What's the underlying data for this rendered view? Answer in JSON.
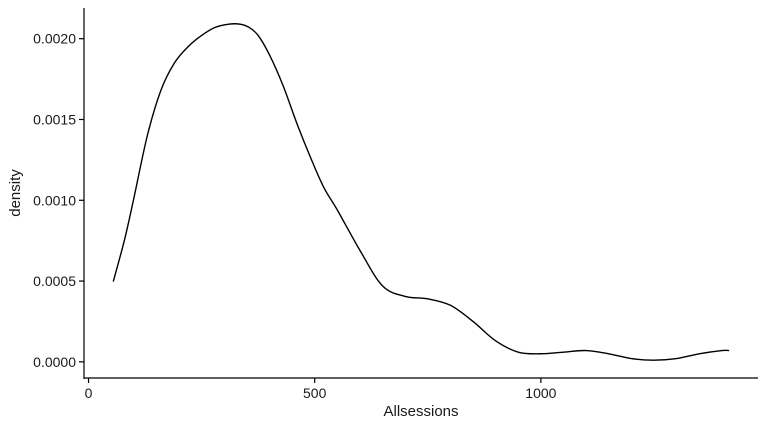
{
  "chart_data": {
    "type": "line",
    "title": "",
    "xlabel": "Allsessions",
    "ylabel": "density",
    "xlim": [
      -10,
      1480
    ],
    "ylim": [
      -0.0001,
      0.00219
    ],
    "x_ticks": [
      0,
      500,
      1000
    ],
    "x_tick_labels": [
      "0",
      "500",
      "1000"
    ],
    "y_ticks": [
      0.0,
      0.0005,
      0.001,
      0.0015,
      0.002
    ],
    "y_tick_labels": [
      "0.0000",
      "0.0005",
      "0.0010",
      "0.0015",
      "0.0020"
    ],
    "grid": false,
    "legend": "none",
    "line_color": "#000000",
    "series": [
      {
        "x": [
          55,
          80,
          100,
          130,
          160,
          190,
          220,
          250,
          280,
          310,
          335,
          355,
          375,
          400,
          430,
          460,
          490,
          520,
          550,
          600,
          650,
          700,
          750,
          800,
          850,
          900,
          950,
          1000,
          1050,
          1100,
          1150,
          1200,
          1250,
          1300,
          1350,
          1400,
          1415
        ],
        "y": [
          0.0005,
          0.00076,
          0.00101,
          0.0014,
          0.00168,
          0.00185,
          0.00195,
          0.00202,
          0.00207,
          0.00209,
          0.00209,
          0.00207,
          0.00202,
          0.0019,
          0.00171,
          0.00148,
          0.00127,
          0.00108,
          0.00094,
          0.00069,
          0.00047,
          0.000405,
          0.00039,
          0.00035,
          0.00025,
          0.00013,
          6e-05,
          5e-05,
          6e-05,
          7e-05,
          5e-05,
          2e-05,
          1e-05,
          2e-05,
          5e-05,
          7e-05,
          7e-05
        ]
      }
    ]
  }
}
